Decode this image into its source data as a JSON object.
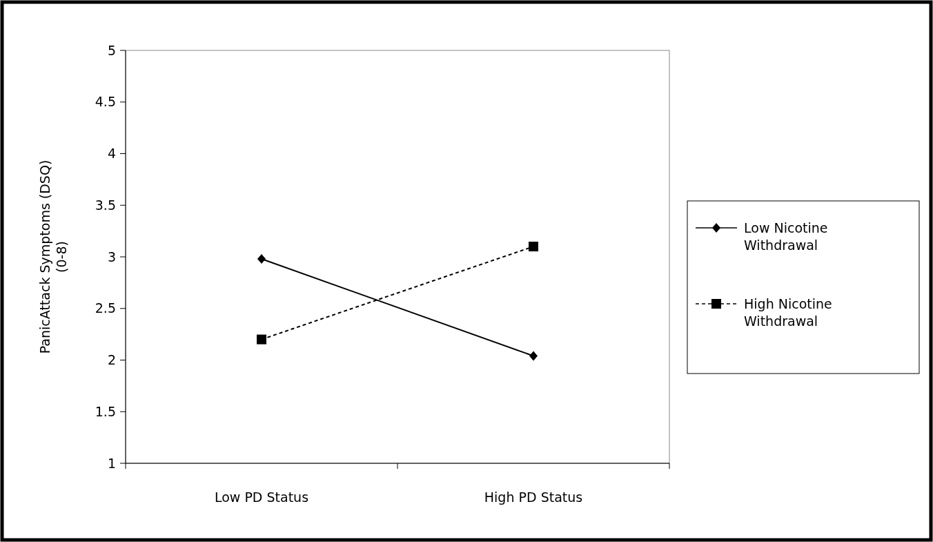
{
  "chart_data": {
    "type": "line",
    "ylabel": "PanicAttack Symptoms (DSQ)\n(0-8)",
    "categories": [
      "Low PD Status",
      "High PD Status"
    ],
    "ylim": [
      1,
      5
    ],
    "yticks": [
      1,
      1.5,
      2,
      2.5,
      3,
      3.5,
      4,
      4.5,
      5
    ],
    "legend": "right",
    "grid": false,
    "series": [
      {
        "name": "Low Nicotine Withdrawal",
        "color": "#000000",
        "values": [
          2.98,
          2.04
        ],
        "marker": "diamond",
        "line_style": "solid"
      },
      {
        "name": "High Nicotine Withdrawal",
        "color": "#000000",
        "values": [
          2.2,
          3.1
        ],
        "marker": "square",
        "line_style": "dashed"
      }
    ]
  }
}
